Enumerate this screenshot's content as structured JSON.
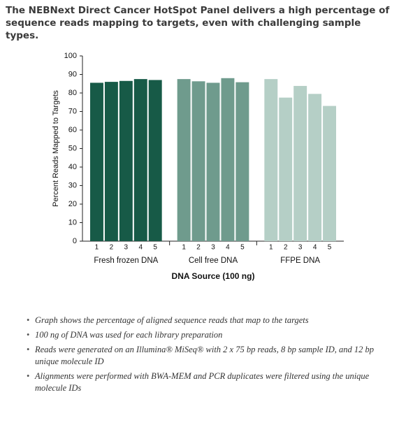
{
  "chart_data": {
    "type": "bar",
    "title": "The NEBNext Direct Cancer HotSpot Panel delivers a high percentage of sequence reads mapping to targets, even with challenging sample types.",
    "ylabel": "Percent Reads Mapped to Targets",
    "xlabel": "DNA Source (100 ng)",
    "ylim": [
      0,
      100
    ],
    "yticks": [
      0,
      10,
      20,
      30,
      40,
      50,
      60,
      70,
      80,
      90,
      100
    ],
    "groups": [
      {
        "name": "Fresh frozen DNA",
        "color": "#175a47",
        "categories": [
          "1",
          "2",
          "3",
          "4",
          "5"
        ],
        "values": [
          85.5,
          86,
          86.5,
          87.5,
          87
        ]
      },
      {
        "name": "Cell free DNA",
        "color": "#6f9b8d",
        "categories": [
          "1",
          "2",
          "3",
          "4",
          "5"
        ],
        "values": [
          87.5,
          86.3,
          85.5,
          88,
          85.8
        ]
      },
      {
        "name": "FFPE DNA",
        "color": "#b5cfc6",
        "categories": [
          "1",
          "2",
          "3",
          "4",
          "5"
        ],
        "values": [
          87.5,
          77.5,
          83.8,
          79.5,
          73
        ]
      }
    ]
  },
  "notes": [
    "Graph shows the percentage of aligned sequence reads that map to the targets",
    "100 ng of DNA was used for each library preparation",
    "Reads were generated on an Illumina® MiSeq® with 2 x 75 bp reads, 8 bp sample ID, and 12 bp unique molecule ID",
    "Alignments were performed with BWA-MEM and PCR duplicates were filtered using the unique molecule IDs"
  ]
}
